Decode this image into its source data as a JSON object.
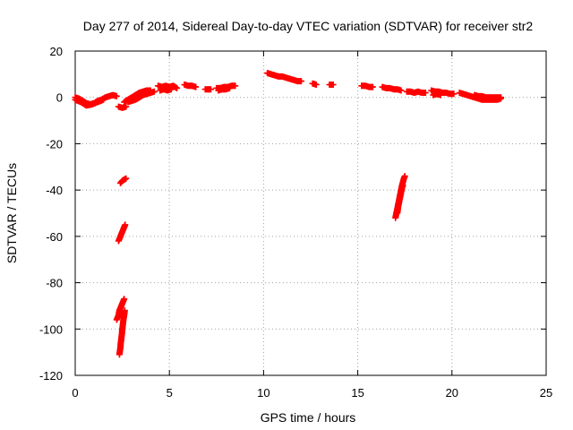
{
  "chart_data": {
    "type": "scatter",
    "title": "Day 277 of 2014, Sidereal Day-to-day VTEC variation (SDTVAR) for receiver str2",
    "xlabel": "GPS time / hours",
    "ylabel": "SDTVAR / TECUs",
    "xlim": [
      0,
      25
    ],
    "ylim": [
      -120,
      20
    ],
    "xticks": [
      0,
      5,
      10,
      15,
      20,
      25
    ],
    "yticks": [
      -120,
      -100,
      -80,
      -60,
      -40,
      -20,
      0,
      20
    ],
    "grid": true,
    "legend": "none",
    "marker": "plus",
    "color": "#ff0000",
    "segments": [
      [
        [
          0.0,
          0.0
        ],
        [
          0.2,
          -0.5
        ],
        [
          0.4,
          -1.5
        ],
        [
          0.6,
          -2.5
        ],
        [
          0.8,
          -3.0
        ],
        [
          1.0,
          -2.5
        ],
        [
          1.2,
          -1.5
        ],
        [
          1.4,
          -1.0
        ],
        [
          1.6,
          0.0
        ],
        [
          1.8,
          0.5
        ],
        [
          2.0,
          1.0
        ],
        [
          2.2,
          0.5
        ]
      ],
      [
        [
          0.0,
          -1.0
        ],
        [
          0.3,
          -2.0
        ],
        [
          0.6,
          -3.5
        ],
        [
          0.9,
          -3.0
        ],
        [
          1.2,
          -2.0
        ],
        [
          1.5,
          -1.0
        ]
      ],
      [
        [
          2.3,
          -4.0
        ],
        [
          2.5,
          -4.5
        ],
        [
          2.7,
          -4.0
        ]
      ],
      [
        [
          2.6,
          -2.0
        ],
        [
          2.8,
          -1.0
        ],
        [
          3.0,
          0.0
        ],
        [
          3.2,
          1.0
        ],
        [
          3.4,
          2.0
        ],
        [
          3.6,
          2.5
        ],
        [
          3.8,
          3.0
        ],
        [
          4.0,
          3.0
        ]
      ],
      [
        [
          2.8,
          -2.0
        ],
        [
          3.0,
          -1.5
        ],
        [
          3.2,
          -1.0
        ],
        [
          3.4,
          0.0
        ],
        [
          3.6,
          1.0
        ],
        [
          3.8,
          1.5
        ],
        [
          4.0,
          2.0
        ],
        [
          4.2,
          2.5
        ]
      ],
      [
        [
          4.4,
          5.0
        ],
        [
          4.6,
          4.5
        ],
        [
          4.8,
          5.0
        ],
        [
          5.0,
          4.5
        ],
        [
          5.2,
          5.0
        ],
        [
          5.4,
          4.0
        ]
      ],
      [
        [
          4.5,
          3.0
        ],
        [
          4.7,
          3.5
        ],
        [
          4.9,
          3.0
        ],
        [
          5.1,
          3.5
        ]
      ],
      [
        [
          5.8,
          5.5
        ],
        [
          6.0,
          5.0
        ],
        [
          6.2,
          5.0
        ],
        [
          6.4,
          4.5
        ]
      ],
      [
        [
          6.9,
          3.5
        ],
        [
          7.2,
          3.5
        ]
      ],
      [
        [
          7.5,
          4.0
        ],
        [
          7.7,
          4.0
        ],
        [
          7.9,
          4.5
        ],
        [
          8.1,
          4.5
        ],
        [
          8.3,
          5.0
        ],
        [
          8.5,
          5.0
        ]
      ],
      [
        [
          7.6,
          3.0
        ],
        [
          7.8,
          3.5
        ],
        [
          8.0,
          3.5
        ],
        [
          8.2,
          4.0
        ]
      ],
      [
        [
          10.2,
          10.5
        ],
        [
          10.4,
          10.0
        ],
        [
          10.6,
          9.5
        ],
        [
          10.8,
          9.0
        ],
        [
          11.0,
          9.0
        ],
        [
          11.2,
          8.5
        ],
        [
          11.4,
          8.0
        ],
        [
          11.6,
          7.5
        ],
        [
          11.8,
          7.0
        ],
        [
          12.0,
          7.0
        ]
      ],
      [
        [
          12.6,
          6.0
        ],
        [
          12.8,
          5.5
        ]
      ],
      [
        [
          13.5,
          5.5
        ],
        [
          13.7,
          5.5
        ]
      ],
      [
        [
          15.2,
          5.0
        ],
        [
          15.4,
          5.0
        ],
        [
          15.6,
          4.5
        ],
        [
          15.8,
          4.5
        ]
      ],
      [
        [
          16.3,
          4.5
        ],
        [
          16.5,
          4.0
        ],
        [
          16.7,
          4.0
        ],
        [
          16.9,
          3.5
        ],
        [
          17.1,
          3.5
        ],
        [
          17.3,
          3.0
        ]
      ],
      [
        [
          17.6,
          2.5
        ],
        [
          17.8,
          2.5
        ],
        [
          18.0,
          2.0
        ],
        [
          18.2,
          2.5
        ],
        [
          18.4,
          2.0
        ],
        [
          18.6,
          2.0
        ]
      ],
      [
        [
          18.9,
          3.0
        ],
        [
          19.1,
          2.5
        ],
        [
          19.3,
          2.5
        ],
        [
          19.5,
          2.0
        ],
        [
          19.7,
          2.0
        ],
        [
          19.9,
          1.5
        ],
        [
          20.1,
          1.5
        ]
      ],
      [
        [
          19.0,
          1.0
        ],
        [
          19.2,
          1.5
        ],
        [
          19.4,
          1.0
        ]
      ],
      [
        [
          20.4,
          2.0
        ],
        [
          20.6,
          1.5
        ],
        [
          20.8,
          1.0
        ],
        [
          21.0,
          0.5
        ],
        [
          21.2,
          0.0
        ],
        [
          21.4,
          -0.5
        ],
        [
          21.6,
          -1.0
        ],
        [
          21.8,
          -1.0
        ],
        [
          22.0,
          -1.0
        ],
        [
          22.2,
          -1.0
        ],
        [
          22.4,
          -1.0
        ],
        [
          22.6,
          -0.5
        ]
      ],
      [
        [
          21.2,
          1.0
        ],
        [
          21.4,
          0.5
        ],
        [
          21.6,
          0.5
        ],
        [
          21.8,
          0.0
        ],
        [
          22.0,
          0.0
        ],
        [
          22.2,
          0.0
        ],
        [
          22.4,
          0.0
        ],
        [
          22.6,
          0.0
        ]
      ],
      [
        [
          2.4,
          -37.0
        ],
        [
          2.5,
          -36.0
        ],
        [
          2.6,
          -35.5
        ],
        [
          2.7,
          -35.0
        ]
      ],
      [
        [
          2.3,
          -62.0
        ],
        [
          2.4,
          -60.0
        ],
        [
          2.45,
          -59.0
        ],
        [
          2.5,
          -58.0
        ],
        [
          2.55,
          -57.0
        ],
        [
          2.6,
          -56.0
        ],
        [
          2.65,
          -55.0
        ]
      ],
      [
        [
          2.2,
          -96.0
        ],
        [
          2.3,
          -94.0
        ],
        [
          2.35,
          -92.0
        ],
        [
          2.4,
          -91.0
        ],
        [
          2.45,
          -90.0
        ],
        [
          2.5,
          -89.0
        ],
        [
          2.55,
          -88.0
        ],
        [
          2.6,
          -87.0
        ]
      ],
      [
        [
          2.35,
          -111.0
        ],
        [
          2.4,
          -108.0
        ],
        [
          2.42,
          -106.0
        ],
        [
          2.45,
          -104.0
        ],
        [
          2.48,
          -102.0
        ],
        [
          2.5,
          -100.0
        ],
        [
          2.53,
          -98.0
        ],
        [
          2.56,
          -96.0
        ],
        [
          2.6,
          -94.0
        ],
        [
          2.63,
          -92.0
        ]
      ],
      [
        [
          17.0,
          -52.0
        ],
        [
          17.05,
          -50.0
        ],
        [
          17.1,
          -48.0
        ],
        [
          17.15,
          -46.0
        ],
        [
          17.2,
          -44.0
        ],
        [
          17.25,
          -42.0
        ],
        [
          17.3,
          -40.0
        ],
        [
          17.35,
          -38.0
        ],
        [
          17.4,
          -36.5
        ],
        [
          17.45,
          -35.0
        ],
        [
          17.5,
          -34.0
        ]
      ],
      [
        [
          17.1,
          -50.0
        ],
        [
          17.15,
          -47.0
        ],
        [
          17.2,
          -45.0
        ],
        [
          17.25,
          -43.0
        ],
        [
          17.3,
          -41.0
        ],
        [
          17.35,
          -39.0
        ],
        [
          17.4,
          -38.0
        ]
      ]
    ]
  }
}
